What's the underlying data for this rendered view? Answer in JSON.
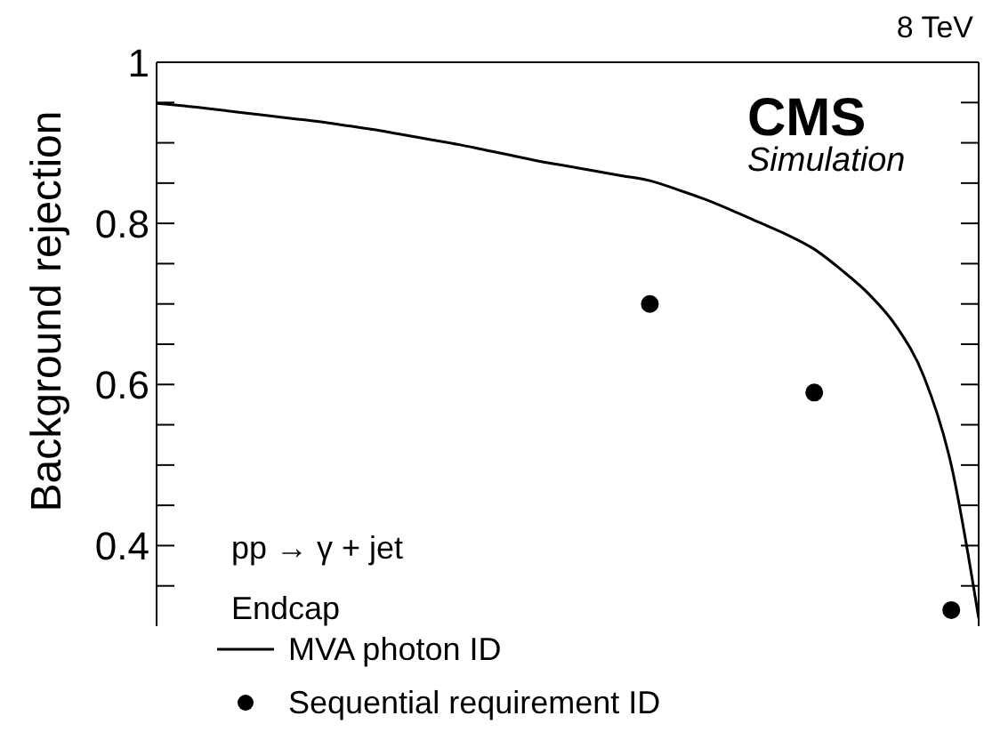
{
  "chart_data": {
    "type": "line",
    "ylabel": "Background rejection",
    "annotations": [
      "8 TeV",
      "CMS",
      "Simulation",
      "pp → γ + jet",
      "Endcap"
    ],
    "categories": [
      null,
      null,
      null,
      null,
      null,
      null,
      null,
      null,
      null,
      null,
      null,
      null,
      null,
      null,
      null,
      null,
      null,
      null,
      null,
      null,
      null,
      null,
      null,
      null,
      null,
      null,
      null,
      null,
      null,
      null,
      null
    ],
    "series": [
      {
        "name": "MVA photon ID",
        "color": "#000000",
        "marker": "none",
        "values": [
          0.949,
          0.946,
          0.942,
          0.938,
          0.934,
          0.93,
          0.926,
          0.921,
          0.916,
          0.91,
          0.904,
          0.898,
          0.891,
          0.884,
          0.877,
          0.871,
          0.865,
          0.859,
          0.853,
          0.842,
          0.83,
          0.816,
          0.801,
          0.786,
          0.768,
          0.742,
          0.712,
          0.672,
          0.61,
          0.5,
          0.31
        ]
      },
      {
        "name": "Sequential requirement ID",
        "type": "scatter",
        "color": "#000000",
        "marker": "circle",
        "values": [
          null,
          null,
          null,
          null,
          null,
          null,
          null,
          null,
          null,
          null,
          null,
          null,
          null,
          null,
          null,
          null,
          null,
          null,
          0.7,
          null,
          null,
          null,
          null,
          null,
          0.59,
          null,
          null,
          null,
          null,
          0.32,
          null
        ]
      }
    ],
    "ylim": [
      0.3,
      1
    ],
    "yticks": [
      {
        "value": 0.35,
        "label": null
      },
      0.4,
      {
        "value": 0.45,
        "label": null
      },
      {
        "value": 0.5,
        "label": null
      },
      {
        "value": 0.55,
        "label": null
      },
      0.6,
      {
        "value": 0.65,
        "label": null
      },
      {
        "value": 0.7,
        "label": null
      },
      {
        "value": 0.75,
        "label": null
      },
      0.8,
      {
        "value": 0.85,
        "label": null
      },
      {
        "value": 0.9,
        "label": null
      },
      {
        "value": 0.95,
        "label": null
      },
      1
    ],
    "legend": "bottom left",
    "grid": false
  }
}
